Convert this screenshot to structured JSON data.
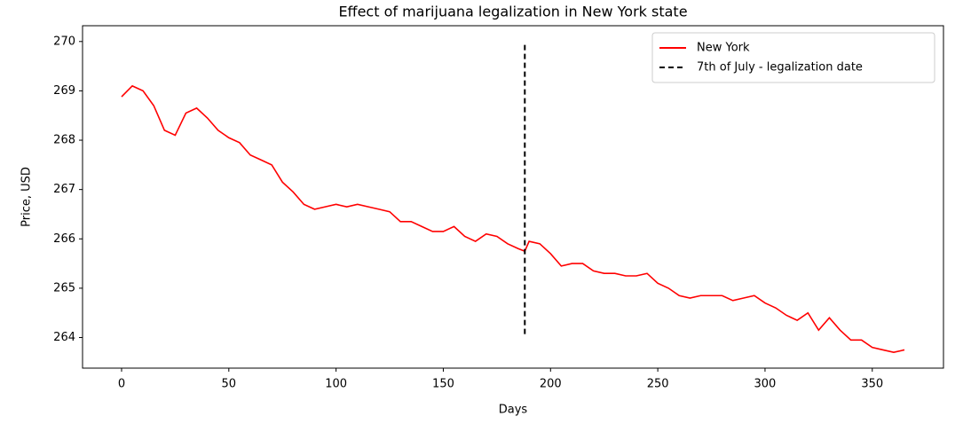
{
  "chart_data": {
    "type": "line",
    "title": "Effect of marijuana legalization in New York state",
    "xlabel": "Days",
    "ylabel": "Price, USD",
    "x": [
      0,
      5,
      10,
      15,
      20,
      25,
      30,
      35,
      40,
      45,
      50,
      55,
      60,
      65,
      70,
      75,
      80,
      85,
      90,
      95,
      100,
      105,
      110,
      115,
      120,
      125,
      130,
      135,
      140,
      145,
      150,
      155,
      160,
      165,
      170,
      175,
      180,
      185,
      188,
      190,
      195,
      200,
      205,
      210,
      215,
      220,
      225,
      230,
      235,
      240,
      245,
      250,
      255,
      260,
      265,
      270,
      275,
      280,
      285,
      290,
      295,
      300,
      305,
      310,
      315,
      320,
      325,
      330,
      335,
      340,
      345,
      350,
      355,
      360,
      365
    ],
    "series": [
      {
        "name": "New York",
        "color": "#ff0000",
        "values": [
          268.88,
          269.1,
          269.0,
          268.7,
          268.2,
          268.1,
          268.55,
          268.65,
          268.45,
          268.2,
          268.05,
          267.95,
          267.7,
          267.6,
          267.5,
          267.15,
          266.95,
          266.7,
          266.6,
          266.65,
          266.7,
          266.65,
          266.7,
          266.65,
          266.6,
          266.55,
          266.35,
          266.35,
          266.25,
          266.15,
          266.15,
          266.25,
          266.05,
          265.95,
          266.1,
          266.05,
          265.9,
          265.8,
          265.75,
          265.95,
          265.9,
          265.7,
          265.45,
          265.5,
          265.5,
          265.35,
          265.3,
          265.3,
          265.25,
          265.25,
          265.3,
          265.1,
          265.0,
          264.85,
          264.8,
          264.85,
          264.85,
          264.85,
          264.75,
          264.8,
          264.85,
          264.7,
          264.6,
          264.45,
          264.35,
          264.5,
          264.15,
          264.4,
          264.15,
          263.95,
          263.95,
          263.8,
          263.75,
          263.7,
          263.75
        ]
      }
    ],
    "vline": {
      "name": "7th of July - legalization date",
      "x": 188,
      "ymin": 264.07,
      "ymax": 270,
      "color": "#000000"
    },
    "xlim": [
      -18.2,
      383.2
    ],
    "ylim": [
      263.38,
      270.32
    ],
    "xticks": [
      0,
      50,
      100,
      150,
      200,
      250,
      300,
      350
    ],
    "yticks": [
      264,
      265,
      266,
      267,
      268,
      269,
      270
    ],
    "legend": "upper right"
  }
}
